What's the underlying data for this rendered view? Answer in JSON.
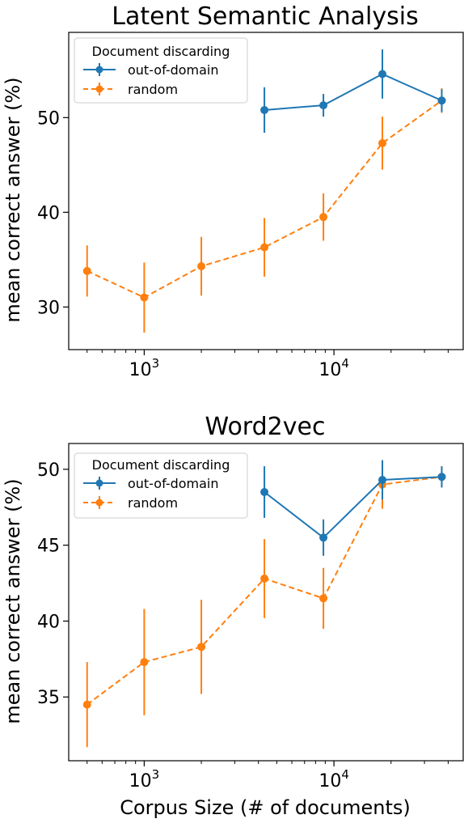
{
  "chart_data": [
    {
      "type": "line",
      "title": "Latent Semantic Analysis",
      "xlabel": "",
      "ylabel": "mean correct answer (%)",
      "x_scale": "log",
      "xlim": [
        400,
        48000
      ],
      "ylim": [
        25.5,
        59
      ],
      "x_ticks": [
        {
          "value": 1000,
          "base": "10",
          "exp": "3"
        },
        {
          "value": 10000,
          "base": "10",
          "exp": "4"
        }
      ],
      "y_ticks": [
        30,
        40,
        50
      ],
      "legend": {
        "title": "Document discarding",
        "placement": "top-left"
      },
      "series": [
        {
          "name": "out-of-domain",
          "color": "#1f77b4",
          "linestyle": "solid",
          "x": [
            4300,
            8800,
            18000,
            37000
          ],
          "y": [
            50.8,
            51.3,
            54.6,
            51.8
          ],
          "err": [
            2.4,
            1.2,
            2.6,
            1.2
          ]
        },
        {
          "name": "random",
          "color": "#ff7f0e",
          "linestyle": "dashed",
          "x": [
            500,
            1000,
            2000,
            4300,
            8800,
            18000,
            37000
          ],
          "y": [
            33.8,
            31.0,
            34.3,
            36.3,
            39.5,
            47.3,
            51.8
          ],
          "err": [
            2.7,
            3.7,
            3.1,
            3.1,
            2.5,
            2.8,
            1.3
          ]
        }
      ]
    },
    {
      "type": "line",
      "title": "Word2vec",
      "xlabel": "Corpus Size (# of documents)",
      "ylabel": "mean correct answer (%)",
      "x_scale": "log",
      "xlim": [
        400,
        48000
      ],
      "ylim": [
        30.8,
        51.7
      ],
      "x_ticks": [
        {
          "value": 1000,
          "base": "10",
          "exp": "3"
        },
        {
          "value": 10000,
          "base": "10",
          "exp": "4"
        }
      ],
      "y_ticks": [
        35,
        40,
        45,
        50
      ],
      "legend": {
        "title": "Document discarding",
        "placement": "top-left"
      },
      "series": [
        {
          "name": "out-of-domain",
          "color": "#1f77b4",
          "linestyle": "solid",
          "x": [
            4300,
            8800,
            18000,
            37000
          ],
          "y": [
            48.5,
            45.5,
            49.3,
            49.5
          ],
          "err": [
            1.7,
            1.2,
            1.3,
            0.7
          ]
        },
        {
          "name": "random",
          "color": "#ff7f0e",
          "linestyle": "dashed",
          "x": [
            500,
            1000,
            2000,
            4300,
            8800,
            18000,
            37000
          ],
          "y": [
            34.5,
            37.3,
            38.3,
            42.8,
            41.5,
            49.0,
            49.5
          ],
          "err": [
            2.8,
            3.5,
            3.1,
            2.6,
            2.0,
            1.6,
            0.7
          ]
        }
      ]
    }
  ]
}
